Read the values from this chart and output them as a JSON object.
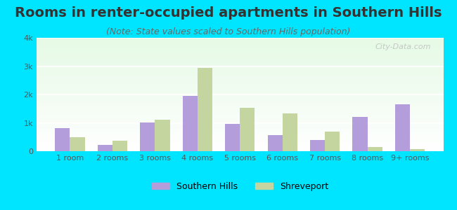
{
  "title": "Rooms in renter-occupied apartments in Southern Hills",
  "subtitle": "(Note: State values scaled to Southern Hills population)",
  "categories": [
    "1 room",
    "2 rooms",
    "3 rooms",
    "4 rooms",
    "5 rooms",
    "6 rooms",
    "7 rooms",
    "8 rooms",
    "9+ rooms"
  ],
  "southern_hills": [
    820,
    230,
    1020,
    1950,
    970,
    560,
    400,
    1220,
    1650
  ],
  "shreveport": [
    490,
    380,
    1100,
    2950,
    1520,
    1330,
    700,
    150,
    80
  ],
  "sh_color": "#b39ddb",
  "shr_color": "#c5d5a0",
  "background_outer": "#00e5ff",
  "ylim": [
    0,
    4000
  ],
  "yticks": [
    0,
    1000,
    2000,
    3000,
    4000
  ],
  "ytick_labels": [
    "0",
    "1k",
    "2k",
    "3k",
    "4k"
  ],
  "title_fontsize": 14,
  "subtitle_fontsize": 9,
  "legend_labels": [
    "Southern Hills",
    "Shreveport"
  ],
  "watermark": "City-Data.com"
}
